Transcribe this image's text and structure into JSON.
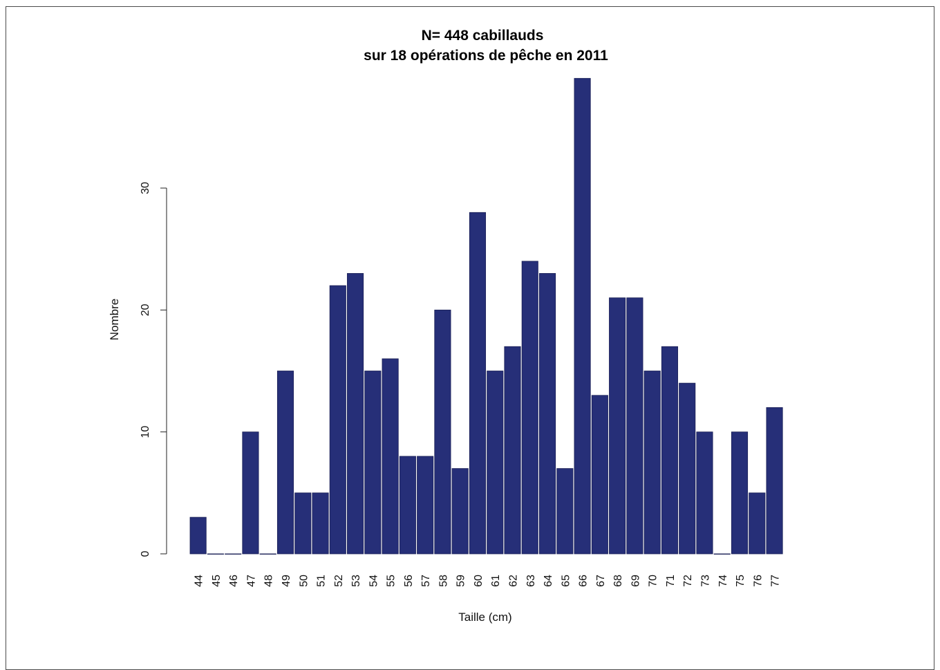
{
  "chart_data": {
    "type": "bar",
    "title": "N= 448 cabillauds",
    "subtitle": "sur 18 opérations de pêche en 2011",
    "xlabel": "Taille (cm)",
    "ylabel": "Nombre",
    "categories": [
      "44",
      "45",
      "46",
      "47",
      "48",
      "49",
      "50",
      "51",
      "52",
      "53",
      "54",
      "55",
      "56",
      "57",
      "58",
      "59",
      "60",
      "61",
      "62",
      "63",
      "64",
      "65",
      "66",
      "67",
      "68",
      "69",
      "70",
      "71",
      "72",
      "73",
      "74",
      "75",
      "76",
      "77"
    ],
    "values": [
      3,
      0,
      0,
      10,
      0,
      15,
      5,
      5,
      22,
      23,
      15,
      16,
      8,
      8,
      20,
      7,
      28,
      15,
      17,
      24,
      23,
      7,
      39,
      13,
      21,
      21,
      15,
      17,
      14,
      10,
      0,
      10,
      5,
      12
    ],
    "y_ticks": [
      0,
      10,
      20,
      30
    ],
    "ylim": [
      0,
      39
    ],
    "grid": false,
    "legend": "none",
    "bar_color": "#262f78"
  }
}
